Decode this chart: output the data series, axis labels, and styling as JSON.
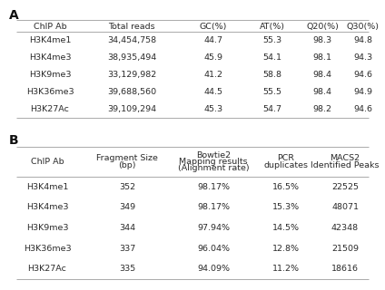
{
  "table_a": {
    "headers": [
      "ChIP Ab",
      "Total reads",
      "GC(%)",
      "AT(%)",
      "Q20(%)",
      "Q30(%)"
    ],
    "rows": [
      [
        "H3K4me1",
        "34,454,758",
        "44.7",
        "55.3",
        "98.3",
        "94.8"
      ],
      [
        "H3K4me3",
        "38,935,494",
        "45.9",
        "54.1",
        "98.1",
        "94.3"
      ],
      [
        "H3K9me3",
        "33,129,982",
        "41.2",
        "58.8",
        "98.4",
        "94.6"
      ],
      [
        "H3K36me3",
        "39,688,560",
        "44.5",
        "55.5",
        "98.4",
        "94.9"
      ],
      [
        "H3K27Ac",
        "39,109,294",
        "45.3",
        "54.7",
        "98.2",
        "94.6"
      ]
    ]
  },
  "table_b": {
    "headers_line1": [
      "ChIP Ab",
      "Fragment Size",
      "Bowtie2",
      "PCR",
      "MACS2"
    ],
    "headers_line2": [
      "",
      "(bp)",
      "Mapping results",
      "duplicates",
      "Identified Peaks"
    ],
    "headers_line3": [
      "",
      "",
      "(Alignment rate)",
      "",
      ""
    ],
    "rows": [
      [
        "H3K4me1",
        "352",
        "98.17%",
        "16.5%",
        "22525"
      ],
      [
        "H3K4me3",
        "349",
        "98.17%",
        "15.3%",
        "48071"
      ],
      [
        "H3K9me3",
        "344",
        "97.94%",
        "14.5%",
        "42348"
      ],
      [
        "H3K36me3",
        "337",
        "96.04%",
        "12.8%",
        "21509"
      ],
      [
        "H3K27Ac",
        "335",
        "94.09%",
        "11.2%",
        "18616"
      ]
    ]
  },
  "label_a": "A",
  "label_b": "B",
  "bg_color": "#ffffff",
  "text_color": "#2a2a2a",
  "line_color": "#aaaaaa",
  "fontsize": 6.8,
  "label_fontsize": 10
}
